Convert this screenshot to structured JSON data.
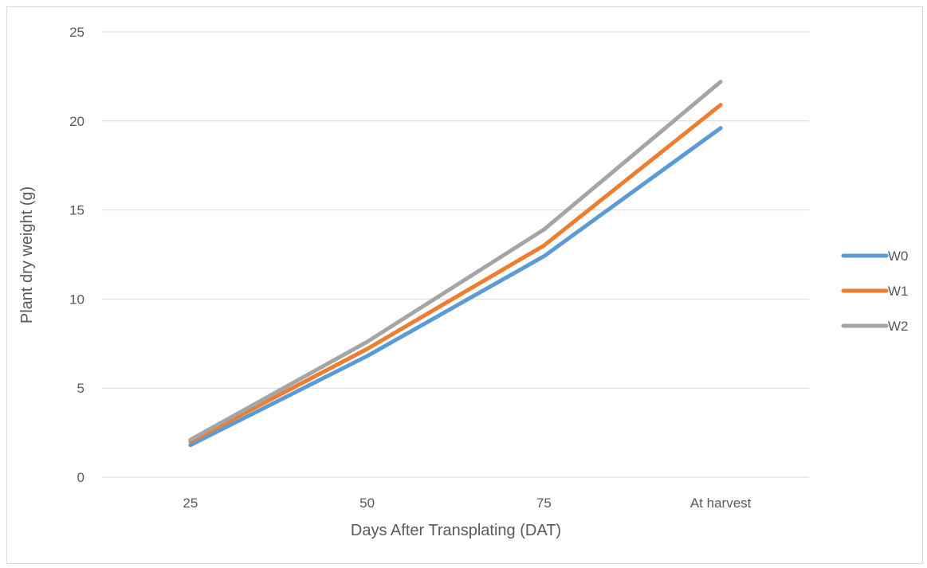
{
  "chart_data": {
    "type": "line",
    "title": "",
    "xlabel": "Days After Transplating (DAT)",
    "ylabel": "Plant dry weight (g)",
    "categories": [
      "25",
      "50",
      "75",
      "At harvest"
    ],
    "ylim": [
      0,
      25
    ],
    "yticks": [
      0,
      5,
      10,
      15,
      20,
      25
    ],
    "grid": true,
    "legend_position": "right",
    "series": [
      {
        "name": "W0",
        "values": [
          1.8,
          6.8,
          12.4,
          19.6
        ],
        "color": "#5b9bd5"
      },
      {
        "name": "W1",
        "values": [
          2.0,
          7.2,
          13.0,
          20.9
        ],
        "color": "#ed7d31"
      },
      {
        "name": "W2",
        "values": [
          2.1,
          7.6,
          13.9,
          22.2
        ],
        "color": "#a5a5a5"
      }
    ]
  }
}
